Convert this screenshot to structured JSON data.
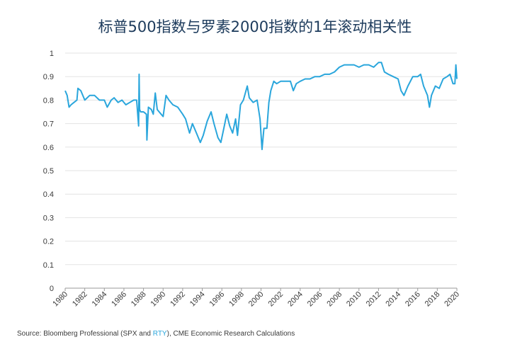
{
  "chart_data": {
    "type": "line",
    "title": "标普500指数与罗素2000指数的1年滚动相关性",
    "xlabel": "",
    "ylabel": "",
    "xlim": [
      1980,
      2020
    ],
    "ylim": [
      0,
      1
    ],
    "yticks": [
      "0",
      "0.1",
      "0.2",
      "0.3",
      "0.4",
      "0.5",
      "0.6",
      "0.7",
      "0.8",
      "0.9",
      "1"
    ],
    "xticks": [
      "1980",
      "1982",
      "1984",
      "1986",
      "1988",
      "1990",
      "1992",
      "1994",
      "1996",
      "1998",
      "2000",
      "2002",
      "2004",
      "2006",
      "2008",
      "2010",
      "2012",
      "2014",
      "2016",
      "2018",
      "2020"
    ],
    "grid": true,
    "legend": "none",
    "line_color": "#2aa6dc",
    "series": [
      {
        "x": [
          1980.0,
          1980.2,
          1980.4,
          1980.6,
          1980.9,
          1981.2,
          1981.3,
          1981.6,
          1982.0,
          1982.5,
          1983.0,
          1983.5,
          1984.0,
          1984.3,
          1984.7,
          1985.0,
          1985.4,
          1985.8,
          1986.2,
          1986.6,
          1987.0,
          1987.3,
          1987.5,
          1987.55,
          1987.6,
          1987.7,
          1987.8,
          1988.0,
          1988.3,
          1988.35,
          1988.5,
          1988.8,
          1989.0,
          1989.2,
          1989.4,
          1989.6,
          1989.8,
          1990.0,
          1990.3,
          1990.6,
          1991.0,
          1991.5,
          1992.0,
          1992.3,
          1992.7,
          1993.0,
          1993.4,
          1993.8,
          1994.1,
          1994.5,
          1994.9,
          1995.2,
          1995.6,
          1995.9,
          1996.2,
          1996.5,
          1996.8,
          1997.1,
          1997.4,
          1997.6,
          1997.9,
          1998.2,
          1998.6,
          1998.8,
          1999.2,
          1999.6,
          1999.9,
          2000.1,
          2000.3,
          2000.6,
          2000.8,
          2001.0,
          2001.3,
          2001.6,
          2002.0,
          2002.5,
          2003.0,
          2003.3,
          2003.6,
          2004.0,
          2004.5,
          2005.0,
          2005.5,
          2006.0,
          2006.5,
          2007.0,
          2007.5,
          2008.0,
          2008.5,
          2009.0,
          2009.5,
          2010.0,
          2010.5,
          2011.0,
          2011.5,
          2012.0,
          2012.3,
          2012.6,
          2013.0,
          2013.5,
          2014.0,
          2014.3,
          2014.6,
          2015.0,
          2015.5,
          2016.0,
          2016.3,
          2016.6,
          2017.0,
          2017.2,
          2017.4,
          2017.8,
          2018.2,
          2018.6,
          2019.0,
          2019.3,
          2019.6,
          2019.8,
          2019.9,
          2020.0
        ],
        "values": [
          0.84,
          0.82,
          0.77,
          0.78,
          0.79,
          0.8,
          0.85,
          0.84,
          0.8,
          0.82,
          0.82,
          0.8,
          0.8,
          0.77,
          0.8,
          0.81,
          0.79,
          0.8,
          0.78,
          0.79,
          0.8,
          0.8,
          0.69,
          0.91,
          0.76,
          0.75,
          0.75,
          0.75,
          0.74,
          0.63,
          0.77,
          0.76,
          0.74,
          0.83,
          0.76,
          0.75,
          0.74,
          0.73,
          0.82,
          0.8,
          0.78,
          0.77,
          0.74,
          0.72,
          0.66,
          0.7,
          0.66,
          0.62,
          0.65,
          0.71,
          0.75,
          0.7,
          0.64,
          0.62,
          0.68,
          0.74,
          0.69,
          0.66,
          0.72,
          0.65,
          0.78,
          0.8,
          0.86,
          0.81,
          0.79,
          0.8,
          0.72,
          0.59,
          0.68,
          0.68,
          0.79,
          0.84,
          0.88,
          0.87,
          0.88,
          0.88,
          0.88,
          0.84,
          0.87,
          0.88,
          0.89,
          0.89,
          0.9,
          0.9,
          0.91,
          0.91,
          0.92,
          0.94,
          0.95,
          0.95,
          0.95,
          0.94,
          0.95,
          0.95,
          0.94,
          0.96,
          0.96,
          0.92,
          0.91,
          0.9,
          0.89,
          0.84,
          0.82,
          0.86,
          0.9,
          0.9,
          0.91,
          0.86,
          0.82,
          0.77,
          0.82,
          0.86,
          0.85,
          0.89,
          0.9,
          0.91,
          0.87,
          0.87,
          0.95,
          0.89
        ]
      }
    ]
  },
  "footer": {
    "source_prefix": "Source: Bloomberg Professional (SPX and ",
    "source_highlight": "RTY",
    "source_suffix": "), CME Economic Research Calculations"
  }
}
